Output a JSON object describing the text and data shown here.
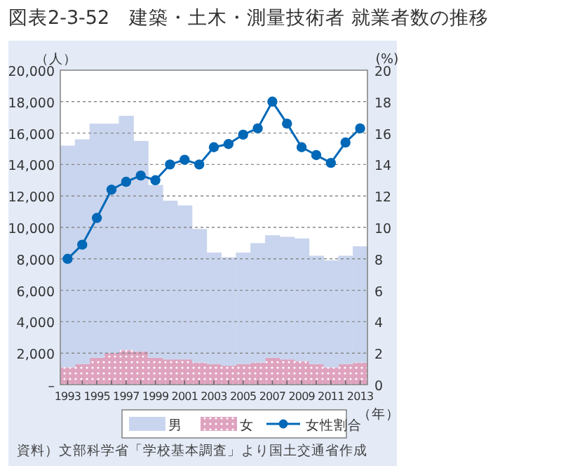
{
  "chart_data": {
    "type": "bar",
    "title": "図表2-3-52　建築・土木・測量技術者 就業者数の推移",
    "ylabel": "（人）",
    "y2label": "(%)",
    "xlabel": "（年）",
    "annotations": [
      "資料）文部科学省「学校基本調査」より国土交通省作成"
    ],
    "x": [
      1993,
      1994,
      1995,
      1996,
      1997,
      1998,
      1999,
      2000,
      2001,
      2002,
      2003,
      2004,
      2005,
      2006,
      2007,
      2008,
      2009,
      2010,
      2011,
      2012,
      2013
    ],
    "xlim": [
      1992.5,
      2013.5
    ],
    "xticks": [
      1993,
      {
        "value": 1994,
        "label": null
      },
      1995,
      {
        "value": 1996,
        "label": null
      },
      1997,
      {
        "value": 1998,
        "label": null
      },
      1999,
      {
        "value": 2000,
        "label": null
      },
      2001,
      {
        "value": 2002,
        "label": null
      },
      2003,
      {
        "value": 2004,
        "label": null
      },
      2005,
      {
        "value": 2006,
        "label": null
      },
      2007,
      {
        "value": 2008,
        "label": null
      },
      2009,
      {
        "value": 2010,
        "label": null
      },
      2011,
      {
        "value": 2012,
        "label": null
      },
      2013
    ],
    "ylim": [
      0,
      20000
    ],
    "yticks": [
      {
        "value": 0,
        "label": "–"
      },
      {
        "value": 2000,
        "label": "2,000"
      },
      {
        "value": 4000,
        "label": "4,000"
      },
      {
        "value": 6000,
        "label": "6,000"
      },
      {
        "value": 8000,
        "label": "8,000"
      },
      {
        "value": 10000,
        "label": "10,000"
      },
      {
        "value": 12000,
        "label": "12,000"
      },
      {
        "value": 14000,
        "label": "14,000"
      },
      {
        "value": 16000,
        "label": "16,000"
      },
      {
        "value": 18000,
        "label": "18,000"
      },
      {
        "value": 20000,
        "label": "20,000"
      }
    ],
    "y2lim": [
      0,
      20
    ],
    "y2ticks": [
      0,
      2,
      4,
      6,
      8,
      10,
      12,
      14,
      16,
      18,
      20
    ],
    "stacked": true,
    "grid": "y",
    "legend": "bottom",
    "line_style": "solid",
    "series": [
      {
        "name": "女",
        "color": "#dfa3bf",
        "values": [
          1100,
          1300,
          1700,
          2000,
          2200,
          2100,
          1700,
          1600,
          1600,
          1400,
          1300,
          1200,
          1300,
          1400,
          1700,
          1600,
          1500,
          1300,
          1100,
          1300,
          1400
        ]
      },
      {
        "name": "男",
        "color": "#c9d5ee",
        "values": [
          14100,
          14300,
          14900,
          14600,
          14900,
          13400,
          11000,
          10100,
          9800,
          8500,
          7100,
          6900,
          7100,
          7600,
          7800,
          7800,
          7800,
          6900,
          6800,
          6900,
          7400
        ]
      },
      {
        "name": "女性割合",
        "type": "line",
        "axis": "y2",
        "marker": "circle",
        "color": "#0068b7",
        "values": [
          8.0,
          8.9,
          10.6,
          12.4,
          12.9,
          13.3,
          13.0,
          14.0,
          14.3,
          14.0,
          15.1,
          15.3,
          15.9,
          16.3,
          18.0,
          16.6,
          15.1,
          14.6,
          14.1,
          15.4,
          16.3
        ]
      }
    ]
  }
}
